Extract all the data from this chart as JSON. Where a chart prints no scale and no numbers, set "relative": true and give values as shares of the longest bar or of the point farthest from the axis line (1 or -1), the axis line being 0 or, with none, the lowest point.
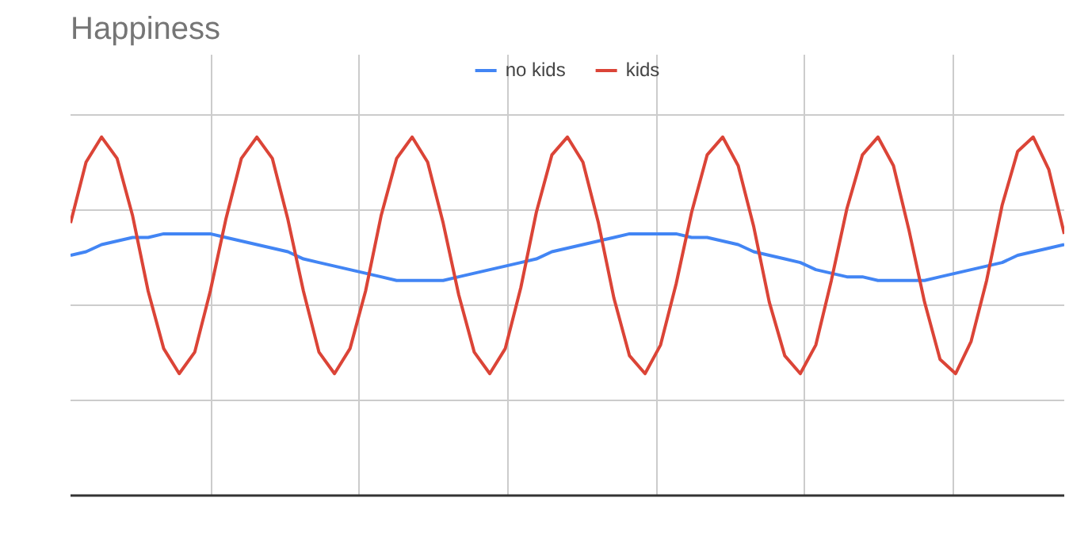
{
  "chart_data": {
    "type": "line",
    "title": "Happiness",
    "relative": true,
    "grid": true,
    "legend": "top",
    "categories": [
      null,
      null,
      null,
      null,
      null,
      null,
      null,
      null,
      null,
      null,
      null,
      null,
      null,
      null,
      null,
      null,
      null,
      null,
      null,
      null,
      null,
      null,
      null,
      null,
      null,
      null,
      null,
      null,
      null,
      null,
      null,
      null,
      null,
      null,
      null,
      null,
      null,
      null,
      null,
      null,
      null,
      null,
      null,
      null,
      null,
      null,
      null,
      null,
      null,
      null,
      null,
      null,
      null,
      null,
      null,
      null,
      null,
      null,
      null,
      null,
      null,
      null,
      null,
      null,
      null
    ],
    "series": [
      {
        "name": "no kids",
        "color": "#4285f4",
        "values": [
          0.67,
          0.68,
          0.7,
          0.71,
          0.72,
          0.72,
          0.73,
          0.73,
          0.73,
          0.73,
          0.72,
          0.71,
          0.7,
          0.69,
          0.68,
          0.66,
          0.65,
          0.64,
          0.63,
          0.62,
          0.61,
          0.6,
          0.6,
          0.6,
          0.6,
          0.61,
          0.62,
          0.63,
          0.64,
          0.65,
          0.66,
          0.68,
          0.69,
          0.7,
          0.71,
          0.72,
          0.73,
          0.73,
          0.73,
          0.73,
          0.72,
          0.72,
          0.71,
          0.7,
          0.68,
          0.67,
          0.66,
          0.65,
          0.63,
          0.62,
          0.61,
          0.61,
          0.6,
          0.6,
          0.6,
          0.6,
          0.61,
          0.62,
          0.63,
          0.64,
          0.65,
          0.67,
          0.68,
          0.69,
          0.7
        ]
      },
      {
        "name": "kids",
        "color": "#db4437",
        "values": [
          0.76,
          0.93,
          1.0,
          0.94,
          0.78,
          0.57,
          0.41,
          0.34,
          0.4,
          0.57,
          0.77,
          0.94,
          1.0,
          0.94,
          0.77,
          0.57,
          0.4,
          0.34,
          0.41,
          0.57,
          0.78,
          0.94,
          1.0,
          0.93,
          0.76,
          0.56,
          0.4,
          0.34,
          0.41,
          0.58,
          0.79,
          0.95,
          1.0,
          0.93,
          0.76,
          0.55,
          0.39,
          0.34,
          0.42,
          0.59,
          0.79,
          0.95,
          1.0,
          0.92,
          0.75,
          0.54,
          0.39,
          0.34,
          0.42,
          0.6,
          0.8,
          0.95,
          1.0,
          0.92,
          0.74,
          0.54,
          0.38,
          0.34,
          0.43,
          0.6,
          0.81,
          0.96,
          1.0,
          0.91,
          0.73
        ]
      }
    ]
  }
}
